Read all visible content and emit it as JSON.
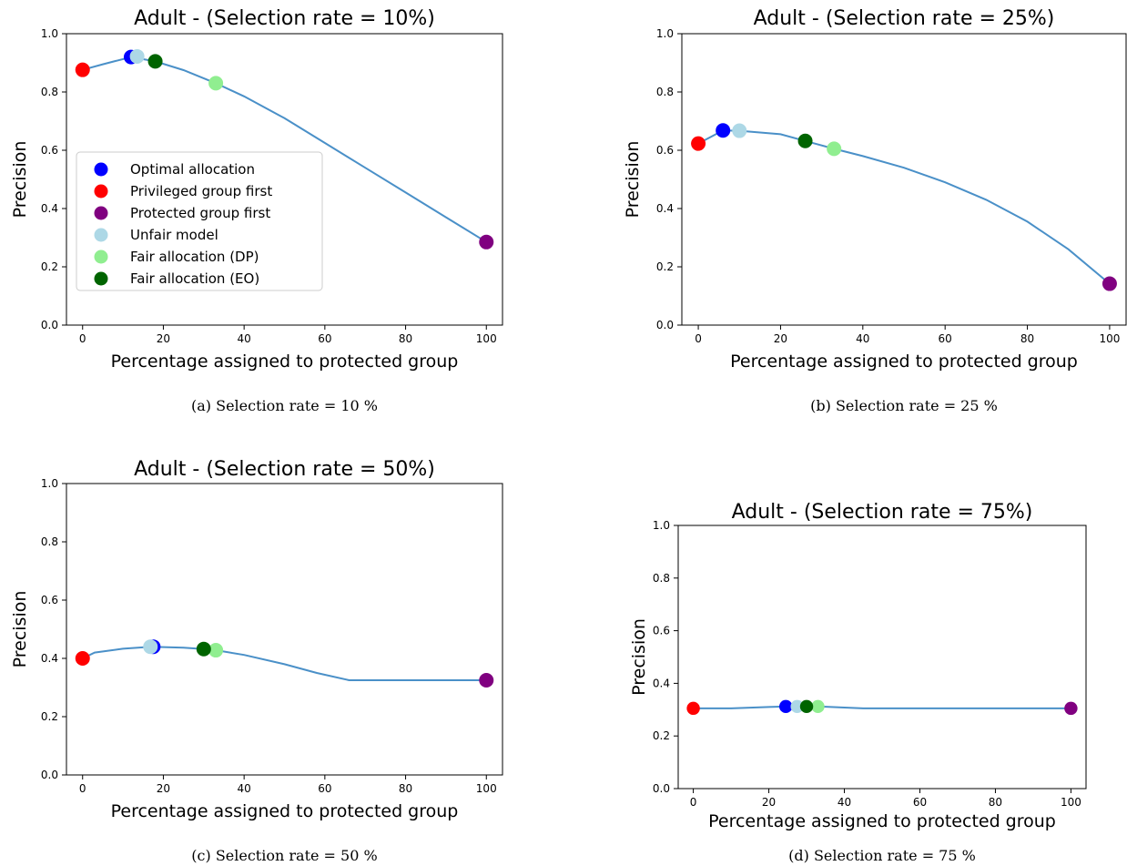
{
  "chart_data": [
    {
      "type": "line",
      "title": "Adult - (Selection rate = 10%)",
      "caption": "(a) Selection rate = 10 %",
      "xlabel": "Percentage assigned to protected group",
      "ylabel": "Precision",
      "xlim": [
        -4,
        104
      ],
      "ylim": [
        0,
        1
      ],
      "xticks": [
        0,
        20,
        40,
        60,
        80,
        100
      ],
      "yticks": [
        0.0,
        0.2,
        0.4,
        0.6,
        0.8,
        1.0
      ],
      "legend": "lower-left",
      "curve": {
        "x": [
          0,
          5,
          12,
          18,
          25,
          33,
          40,
          50,
          60,
          70,
          80,
          90,
          100
        ],
        "y": [
          0.876,
          0.895,
          0.92,
          0.905,
          0.875,
          0.83,
          0.785,
          0.71,
          0.625,
          0.54,
          0.455,
          0.37,
          0.285
        ]
      },
      "points": [
        {
          "label": "Optimal allocation",
          "x": 12,
          "y": 0.92
        },
        {
          "label": "Privileged group first",
          "x": 0,
          "y": 0.876
        },
        {
          "label": "Protected group first",
          "x": 100,
          "y": 0.285
        },
        {
          "label": "Unfair model",
          "x": 13.5,
          "y": 0.922
        },
        {
          "label": "Fair allocation (DP)",
          "x": 33,
          "y": 0.83
        },
        {
          "label": "Fair allocation (EO)",
          "x": 18,
          "y": 0.905
        }
      ]
    },
    {
      "type": "line",
      "title": "Adult - (Selection rate = 25%)",
      "caption": "(b) Selection rate = 25 %",
      "xlabel": "Percentage assigned to protected group",
      "ylabel": "Precision",
      "xlim": [
        -4,
        104
      ],
      "ylim": [
        0,
        1
      ],
      "xticks": [
        0,
        20,
        40,
        60,
        80,
        100
      ],
      "yticks": [
        0.0,
        0.2,
        0.4,
        0.6,
        0.8,
        1.0
      ],
      "curve": {
        "x": [
          0,
          6,
          10,
          20,
          26,
          33,
          40,
          50,
          60,
          70,
          80,
          90,
          100
        ],
        "y": [
          0.623,
          0.668,
          0.667,
          0.655,
          0.632,
          0.605,
          0.58,
          0.54,
          0.49,
          0.43,
          0.355,
          0.26,
          0.142
        ]
      },
      "points": [
        {
          "label": "Optimal allocation",
          "x": 6,
          "y": 0.668
        },
        {
          "label": "Privileged group first",
          "x": 0,
          "y": 0.623
        },
        {
          "label": "Protected group first",
          "x": 100,
          "y": 0.142
        },
        {
          "label": "Unfair model",
          "x": 10,
          "y": 0.667
        },
        {
          "label": "Fair allocation (DP)",
          "x": 33,
          "y": 0.605
        },
        {
          "label": "Fair allocation (EO)",
          "x": 26,
          "y": 0.632
        }
      ]
    },
    {
      "type": "line",
      "title": "Adult - (Selection rate = 50%)",
      "caption": "(c) Selection rate = 50 %",
      "xlabel": "Percentage assigned to protected group",
      "ylabel": "Precision",
      "xlim": [
        -4,
        104
      ],
      "ylim": [
        0,
        1
      ],
      "xticks": [
        0,
        20,
        40,
        60,
        80,
        100
      ],
      "yticks": [
        0.0,
        0.2,
        0.4,
        0.6,
        0.8,
        1.0
      ],
      "curve": {
        "x": [
          0,
          3,
          10,
          17,
          25,
          30,
          33,
          40,
          50,
          58,
          66,
          80,
          100
        ],
        "y": [
          0.4,
          0.42,
          0.433,
          0.44,
          0.437,
          0.432,
          0.428,
          0.412,
          0.38,
          0.35,
          0.325,
          0.325,
          0.325
        ]
      },
      "points": [
        {
          "label": "Optimal allocation",
          "x": 17.5,
          "y": 0.44
        },
        {
          "label": "Privileged group first",
          "x": 0,
          "y": 0.4
        },
        {
          "label": "Protected group first",
          "x": 100,
          "y": 0.325
        },
        {
          "label": "Unfair model",
          "x": 16.8,
          "y": 0.44
        },
        {
          "label": "Fair allocation (DP)",
          "x": 33,
          "y": 0.428
        },
        {
          "label": "Fair allocation (EO)",
          "x": 30,
          "y": 0.432
        }
      ]
    },
    {
      "type": "line",
      "title": "Adult - (Selection rate = 75%)",
      "caption": "(d) Selection rate = 75 %",
      "xlabel": "Percentage assigned to protected group",
      "ylabel": "Precision",
      "xlim": [
        -4,
        104
      ],
      "ylim": [
        0,
        1
      ],
      "xticks": [
        0,
        20,
        40,
        60,
        80,
        100
      ],
      "yticks": [
        0.0,
        0.2,
        0.4,
        0.6,
        0.8,
        1.0
      ],
      "curve": {
        "x": [
          0,
          10,
          20,
          25,
          33,
          40,
          45,
          60,
          80,
          100
        ],
        "y": [
          0.305,
          0.305,
          0.31,
          0.312,
          0.312,
          0.308,
          0.305,
          0.305,
          0.305,
          0.305
        ]
      },
      "points": [
        {
          "label": "Optimal allocation",
          "x": 24.5,
          "y": 0.312
        },
        {
          "label": "Privileged group first",
          "x": 0,
          "y": 0.305
        },
        {
          "label": "Protected group first",
          "x": 100,
          "y": 0.305
        },
        {
          "label": "Unfair model",
          "x": 27.5,
          "y": 0.312
        },
        {
          "label": "Fair allocation (DP)",
          "x": 33,
          "y": 0.312
        },
        {
          "label": "Fair allocation (EO)",
          "x": 30,
          "y": 0.312
        }
      ]
    }
  ],
  "legend_items": [
    {
      "label": "Optimal allocation",
      "color": "#0000ff"
    },
    {
      "label": "Privileged group first",
      "color": "#ff0000"
    },
    {
      "label": "Protected group first",
      "color": "#800080"
    },
    {
      "label": "Unfair model",
      "color": "#add8e6"
    },
    {
      "label": "Fair allocation (DP)",
      "color": "#90ee90"
    },
    {
      "label": "Fair allocation (EO)",
      "color": "#006400"
    }
  ],
  "line_color": "#4a90c8"
}
